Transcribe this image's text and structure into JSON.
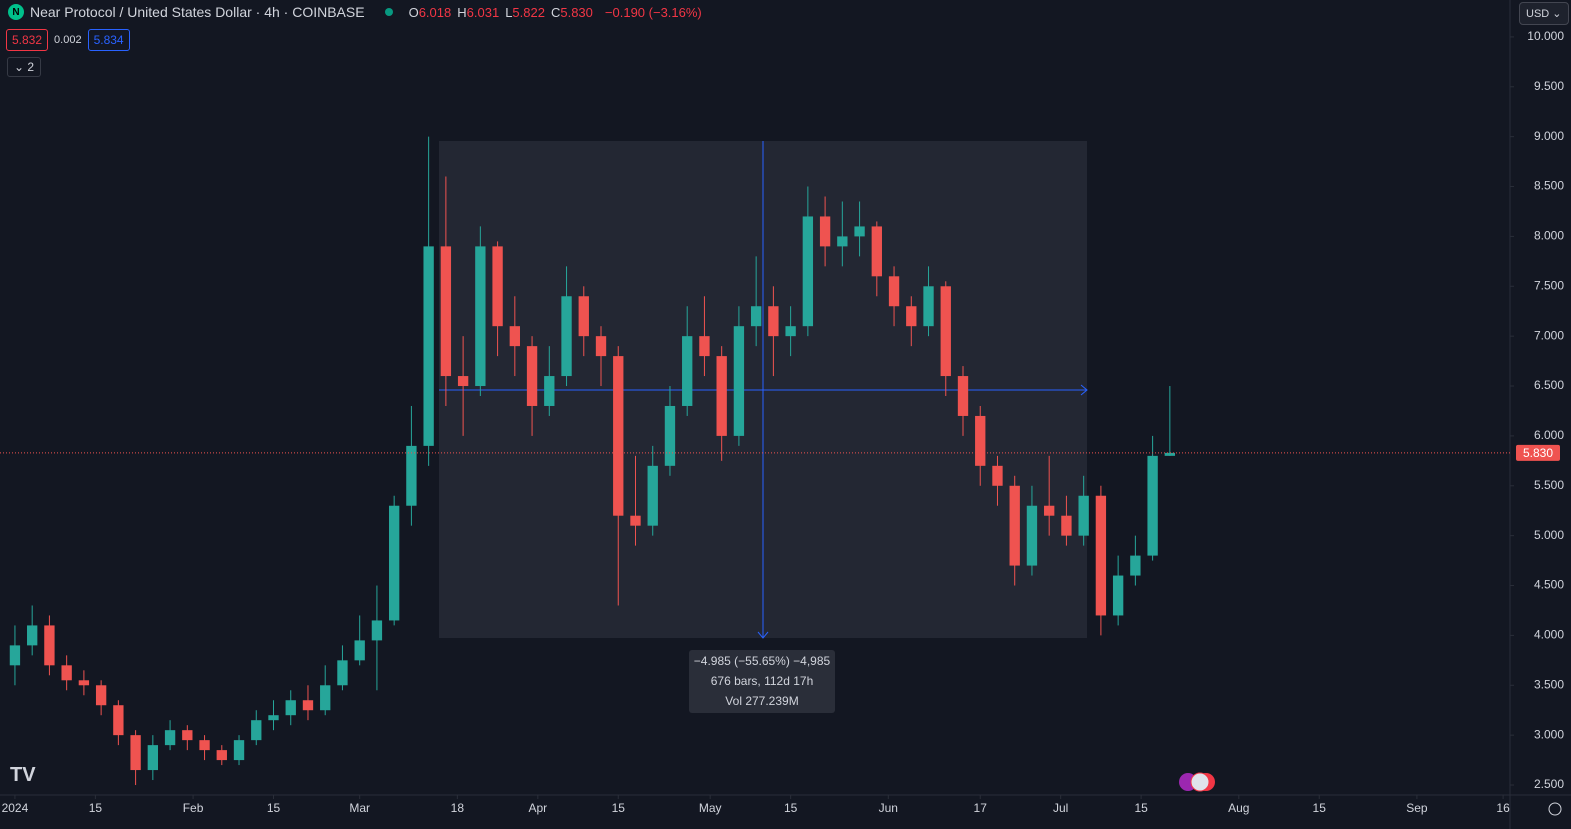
{
  "header": {
    "symbol": "Near Protocol / United States Dollar · 4h · COINBASE",
    "legend_values": [
      {
        "label": "O",
        "value": "6.018"
      },
      {
        "label": "H",
        "value": "6.031"
      },
      {
        "label": "L",
        "value": "5.822"
      },
      {
        "label": "C",
        "value": "5.830"
      }
    ],
    "change": "−0.190 (−3.16%)",
    "bid": "5.832",
    "spread": "0.002",
    "ask": "5.834",
    "indicators": "2",
    "currency": "USD"
  },
  "measure": {
    "line1": "−4.985 (−55.65%) −4,985",
    "line2": "676 bars, 112d 17h",
    "line3": "Vol 277.239M"
  },
  "chart_data": {
    "type": "candlestick",
    "up_color": "#26a69a",
    "down_color": "#ef5350",
    "xlim": [
      -2.6,
      260.2
    ],
    "ylim": [
      2.4,
      10.37
    ],
    "xticks": [
      {
        "value": 0,
        "label": "2024"
      },
      {
        "value": 14,
        "label": "15"
      },
      {
        "value": 31,
        "label": "Feb"
      },
      {
        "value": 45,
        "label": "15"
      },
      {
        "value": 60,
        "label": "Mar"
      },
      {
        "value": 77,
        "label": "18"
      },
      {
        "value": 91,
        "label": "Apr"
      },
      {
        "value": 105,
        "label": "15"
      },
      {
        "value": 121,
        "label": "May"
      },
      {
        "value": 135,
        "label": "15"
      },
      {
        "value": 152,
        "label": "Jun"
      },
      {
        "value": 168,
        "label": "17"
      },
      {
        "value": 182,
        "label": "Jul"
      },
      {
        "value": 196,
        "label": "15"
      },
      {
        "value": 213,
        "label": "Aug"
      },
      {
        "value": 227,
        "label": "15"
      },
      {
        "value": 244,
        "label": "Sep"
      },
      {
        "value": 259,
        "label": "16"
      }
    ],
    "yticks": [
      {
        "value": 2.5,
        "label": "2.500"
      },
      {
        "value": 3,
        "label": "3.000"
      },
      {
        "value": 3.5,
        "label": "3.500"
      },
      {
        "value": 4,
        "label": "4.000"
      },
      {
        "value": 4.5,
        "label": "4.500"
      },
      {
        "value": 5,
        "label": "5.000"
      },
      {
        "value": 5.5,
        "label": "5.500"
      },
      {
        "value": 6,
        "label": "6.000"
      },
      {
        "value": 6.5,
        "label": "6.500"
      },
      {
        "value": 7,
        "label": "7.000"
      },
      {
        "value": 7.5,
        "label": "7.500"
      },
      {
        "value": 8,
        "label": "8.000"
      },
      {
        "value": 8.5,
        "label": "8.500"
      },
      {
        "value": 9,
        "label": "9.000"
      },
      {
        "value": 9.5,
        "label": "9.500"
      },
      {
        "value": 10,
        "label": "10.000"
      }
    ],
    "last_price": {
      "value": 5.83,
      "label": "5.830"
    },
    "x": [
      0,
      3,
      6,
      9,
      12,
      15,
      18,
      21,
      24,
      27,
      30,
      33,
      36,
      39,
      42,
      45,
      48,
      51,
      54,
      57,
      60,
      63,
      66,
      69,
      72,
      75,
      78,
      81,
      84,
      87,
      90,
      93,
      96,
      99,
      102,
      105,
      108,
      111,
      114,
      117,
      120,
      123,
      126,
      129,
      132,
      135,
      138,
      141,
      144,
      147,
      150,
      153,
      156,
      159,
      162,
      165,
      168,
      171,
      174,
      177,
      180,
      183,
      186,
      189,
      192,
      195,
      198,
      201
    ],
    "open": [
      3.7,
      3.9,
      4.1,
      3.7,
      3.55,
      3.5,
      3.3,
      3.0,
      2.65,
      2.9,
      3.05,
      2.95,
      2.85,
      2.75,
      2.95,
      3.15,
      3.2,
      3.35,
      3.25,
      3.5,
      3.75,
      3.95,
      4.15,
      5.3,
      5.9,
      7.9,
      6.6,
      6.5,
      7.9,
      7.1,
      6.9,
      6.3,
      6.6,
      7.4,
      7.0,
      6.8,
      5.2,
      5.1,
      5.7,
      6.3,
      7.0,
      6.8,
      6.0,
      7.1,
      7.3,
      7.0,
      7.1,
      8.2,
      7.9,
      8.0,
      8.1,
      7.6,
      7.3,
      7.1,
      7.5,
      6.6,
      6.2,
      5.7,
      5.5,
      4.7,
      5.3,
      5.2,
      5.0,
      5.4,
      4.2,
      4.6,
      4.8,
      5.8
    ],
    "high": [
      4.1,
      4.3,
      4.2,
      3.8,
      3.65,
      3.55,
      3.35,
      3.05,
      3.0,
      3.15,
      3.1,
      3.0,
      2.9,
      3.0,
      3.25,
      3.35,
      3.45,
      3.5,
      3.7,
      3.9,
      4.2,
      4.5,
      5.4,
      6.3,
      9.0,
      8.6,
      7.0,
      8.1,
      7.95,
      7.4,
      7.0,
      6.9,
      7.7,
      7.5,
      7.1,
      6.9,
      5.8,
      5.9,
      6.5,
      7.3,
      7.4,
      6.9,
      7.3,
      7.8,
      7.5,
      7.3,
      8.5,
      8.4,
      8.35,
      8.35,
      8.15,
      7.7,
      7.4,
      7.7,
      7.55,
      6.7,
      6.3,
      5.8,
      5.6,
      5.5,
      5.8,
      5.4,
      5.6,
      5.5,
      4.8,
      5.0,
      6.0,
      6.5
    ],
    "low": [
      3.5,
      3.8,
      3.6,
      3.45,
      3.4,
      3.2,
      2.9,
      2.5,
      2.55,
      2.85,
      2.85,
      2.75,
      2.7,
      2.7,
      2.9,
      3.05,
      3.1,
      3.15,
      3.2,
      3.45,
      3.7,
      3.45,
      4.1,
      5.1,
      5.7,
      6.3,
      6.0,
      6.4,
      6.8,
      6.6,
      6.0,
      6.2,
      6.5,
      6.8,
      6.5,
      4.3,
      4.9,
      5.0,
      5.6,
      6.2,
      6.6,
      5.75,
      5.9,
      6.9,
      6.6,
      6.8,
      7.0,
      7.7,
      7.7,
      7.8,
      7.4,
      7.1,
      6.9,
      7.0,
      6.4,
      6.0,
      5.5,
      5.3,
      4.5,
      4.6,
      5.0,
      4.9,
      4.9,
      4.0,
      4.1,
      4.5,
      4.75,
      5.8
    ],
    "close": [
      3.9,
      4.1,
      3.7,
      3.55,
      3.5,
      3.3,
      3.0,
      2.65,
      2.9,
      3.05,
      2.95,
      2.85,
      2.75,
      2.95,
      3.15,
      3.2,
      3.35,
      3.25,
      3.5,
      3.75,
      3.95,
      4.15,
      5.3,
      5.9,
      7.9,
      6.6,
      6.5,
      7.9,
      7.1,
      6.9,
      6.3,
      6.6,
      7.4,
      7.0,
      6.8,
      5.2,
      5.1,
      5.7,
      6.3,
      7.0,
      6.8,
      6.0,
      7.1,
      7.3,
      7.0,
      7.1,
      8.2,
      7.9,
      8.0,
      8.1,
      7.6,
      7.3,
      7.1,
      7.5,
      6.6,
      6.2,
      5.7,
      5.5,
      4.7,
      5.3,
      5.2,
      5.0,
      5.4,
      4.2,
      4.6,
      4.8,
      5.8,
      5.83
    ]
  }
}
